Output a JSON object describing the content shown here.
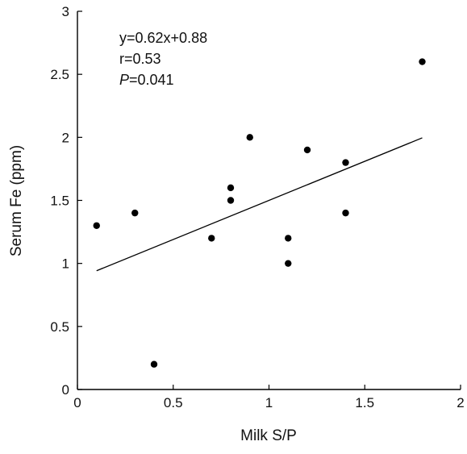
{
  "chart_data": {
    "type": "scatter",
    "xlabel": "Milk S/P",
    "ylabel": "Serum Fe (ppm)",
    "xlim": [
      0,
      2
    ],
    "ylim": [
      0,
      3
    ],
    "x_ticks": [
      0,
      0.5,
      1,
      1.5,
      2
    ],
    "x_tick_labels": [
      "0",
      "0.5",
      "1",
      "1.5",
      "2"
    ],
    "y_ticks": [
      0,
      0.5,
      1,
      1.5,
      2,
      2.5,
      3
    ],
    "y_tick_labels": [
      "0",
      "0.5",
      "1",
      "1.5",
      "2",
      "2.5",
      "3"
    ],
    "grid": false,
    "series": [
      {
        "points": [
          {
            "x": 0.1,
            "y": 1.3
          },
          {
            "x": 0.3,
            "y": 1.4
          },
          {
            "x": 0.4,
            "y": 0.2
          },
          {
            "x": 0.7,
            "y": 1.2
          },
          {
            "x": 0.8,
            "y": 1.6
          },
          {
            "x": 0.8,
            "y": 1.5
          },
          {
            "x": 0.9,
            "y": 2.0
          },
          {
            "x": 1.1,
            "y": 1.2
          },
          {
            "x": 1.1,
            "y": 1.0
          },
          {
            "x": 1.2,
            "y": 1.9
          },
          {
            "x": 1.4,
            "y": 1.8
          },
          {
            "x": 1.4,
            "y": 1.4
          },
          {
            "x": 1.8,
            "y": 2.6
          }
        ],
        "color": "#000000"
      }
    ],
    "fit_line": {
      "slope": 0.62,
      "intercept": 0.88,
      "x_range": [
        0.1,
        1.8
      ],
      "color": "#000000"
    },
    "annotations": {
      "equation": "y=0.62x+0.88",
      "r": "r=0.53",
      "p_symbol": "P",
      "p_value": "=0.041"
    }
  }
}
